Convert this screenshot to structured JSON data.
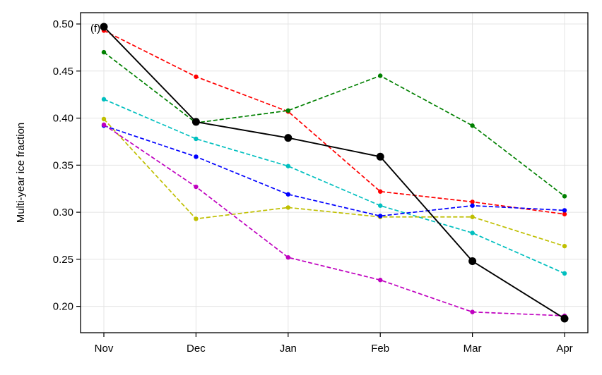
{
  "chart_data": {
    "type": "line",
    "panel_label": "(f)",
    "title": "",
    "xlabel": "",
    "ylabel": "Multi-year ice fraction",
    "categories": [
      "Nov",
      "Dec",
      "Jan",
      "Feb",
      "Mar",
      "Apr"
    ],
    "ylim": [
      0.172,
      0.512
    ],
    "yticks": [
      0.2,
      0.25,
      0.3,
      0.35,
      0.4,
      0.45,
      0.5
    ],
    "ytick_labels": [
      "0.20",
      "0.25",
      "0.30",
      "0.35",
      "0.40",
      "0.45",
      "0.50"
    ],
    "grid": true,
    "legend": "none",
    "series": [
      {
        "name": "red",
        "color": "#ff0000",
        "style": "dashed",
        "values": [
          0.493,
          0.444,
          0.407,
          0.322,
          0.311,
          0.298
        ]
      },
      {
        "name": "green",
        "color": "#008000",
        "style": "dashed",
        "values": [
          0.47,
          0.395,
          0.408,
          0.445,
          0.392,
          0.317
        ]
      },
      {
        "name": "cyan",
        "color": "#00bfbf",
        "style": "dashed",
        "values": [
          0.42,
          0.378,
          0.349,
          0.307,
          0.278,
          0.235
        ]
      },
      {
        "name": "yellow",
        "color": "#bfbf00",
        "style": "dashed",
        "values": [
          0.399,
          0.293,
          0.305,
          0.295,
          0.295,
          0.264
        ]
      },
      {
        "name": "blue",
        "color": "#0000ff",
        "style": "dashed",
        "values": [
          0.392,
          0.359,
          0.319,
          0.296,
          0.307,
          0.302
        ]
      },
      {
        "name": "magenta",
        "color": "#bf00bf",
        "style": "dashed",
        "values": [
          0.393,
          0.327,
          0.252,
          0.228,
          0.194,
          0.19
        ]
      },
      {
        "name": "black",
        "color": "#000000",
        "style": "solid",
        "values": [
          0.497,
          0.396,
          0.379,
          0.359,
          0.248,
          0.187
        ]
      }
    ]
  }
}
